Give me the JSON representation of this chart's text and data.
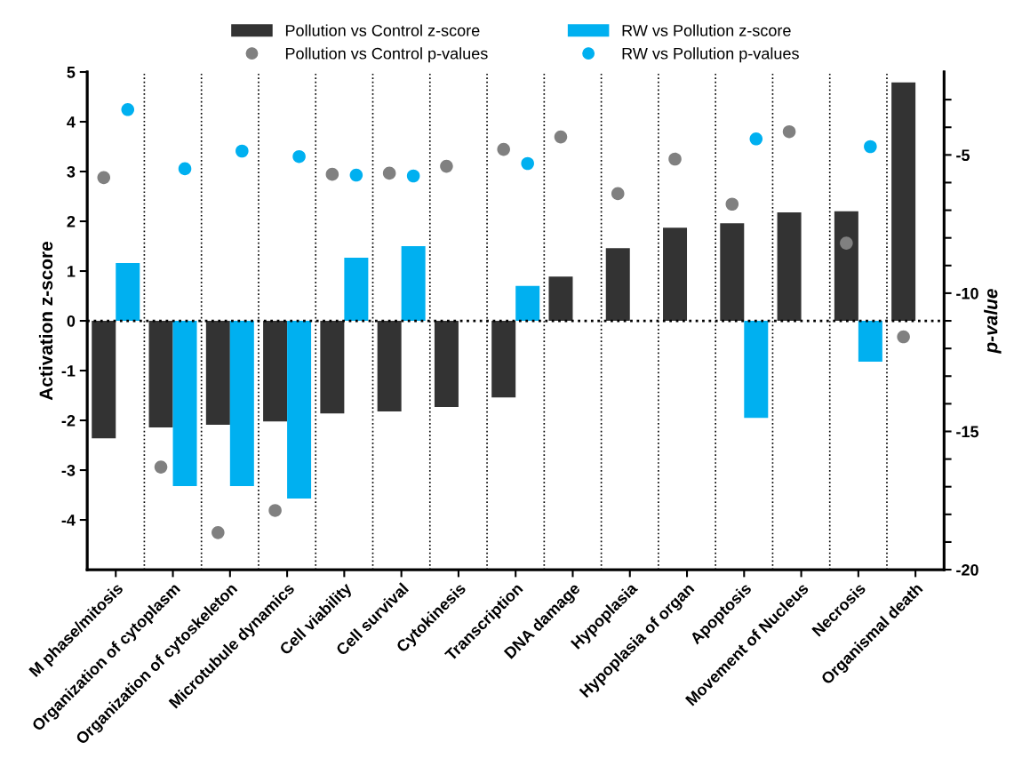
{
  "chart_data": {
    "type": "bar",
    "categories": [
      "M phase/mitosis",
      "Organization of cytoplasm",
      "Organization of cytoskeleton",
      "Microtubule dynamics",
      "Cell viability",
      "Cell survival",
      "Cytokinesis",
      "Transcription",
      "DNA damage",
      "Hypoplasia",
      "Hypoplasia of organ",
      "Apoptosis",
      "Movement of Nucleus",
      "Necrosis",
      "Organismal death"
    ],
    "series": [
      {
        "name": "Pollution vs Control z-score",
        "color": "#333333",
        "values": [
          -2.36,
          -2.14,
          -2.09,
          -2.02,
          -1.86,
          -1.82,
          -1.73,
          -1.54,
          0.89,
          1.46,
          1.87,
          1.96,
          2.18,
          2.2,
          4.79
        ]
      },
      {
        "name": "RW vs Pollution z-score",
        "color": "#00b0f0",
        "values": [
          1.16,
          -3.32,
          -3.32,
          -3.57,
          1.27,
          1.5,
          null,
          0.7,
          null,
          null,
          null,
          -1.95,
          null,
          -0.82,
          null
        ]
      },
      {
        "name": "Pollution vs Control p-values",
        "type": "scatter",
        "axis": "y2",
        "color": "#808080",
        "values": [
          -5.82,
          -16.29,
          -18.66,
          -17.86,
          -5.7,
          -5.66,
          -5.41,
          -4.8,
          -4.35,
          -6.4,
          -5.15,
          -6.78,
          -4.16,
          -8.19,
          -11.58
        ]
      },
      {
        "name": "RW vs Pollution p-values",
        "type": "scatter",
        "axis": "y2",
        "color": "#00b0f0",
        "values": [
          -3.36,
          -5.5,
          -4.86,
          -5.06,
          -5.73,
          -5.76,
          null,
          -5.31,
          null,
          null,
          null,
          -4.42,
          null,
          -4.7,
          null
        ]
      }
    ],
    "ylabel": "Activation z-score",
    "y2label": "p-value",
    "ylim": [
      -5,
      5
    ],
    "yticks": [
      -4,
      -3,
      -2,
      -1,
      0,
      1,
      2,
      3,
      4,
      5
    ],
    "y2lim": [
      -20,
      -2
    ],
    "y2ticks": [
      {
        "value": -3,
        "label": null
      },
      {
        "value": -4,
        "label": null
      },
      -5,
      {
        "value": -6,
        "label": null
      },
      {
        "value": -7,
        "label": null
      },
      {
        "value": -8,
        "label": null
      },
      {
        "value": -9,
        "label": null
      },
      -10,
      {
        "value": -11,
        "label": null
      },
      {
        "value": -12,
        "label": null
      },
      {
        "value": -13,
        "label": null
      },
      {
        "value": -14,
        "label": null
      },
      -15,
      {
        "value": -16,
        "label": null
      },
      {
        "value": -17,
        "label": null
      },
      {
        "value": -18,
        "label": null
      },
      {
        "value": -19,
        "label": null
      },
      -20
    ],
    "ref_lines": [
      {
        "axis": "y",
        "value": 0,
        "line_style": "dotted",
        "color": "#000000"
      }
    ],
    "grid": "x",
    "legend": "top",
    "marker": "circle"
  }
}
